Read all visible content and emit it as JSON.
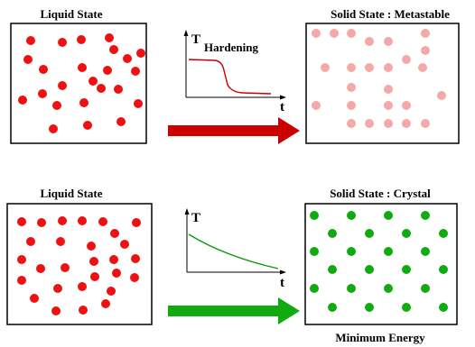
{
  "top_row": {
    "left_title": "Liquid State",
    "right_title": "Solid State : Metastable",
    "graph": {
      "y_axis_label": "T",
      "annotation": "Hardening",
      "x_axis_label": "t",
      "curve_color": "#cc0000"
    },
    "arrow_color": "#cc0000",
    "left_particle_color": "#ee1111",
    "right_particle_color": "#f4a9a9"
  },
  "bottom_row": {
    "left_title": "Liquid State",
    "right_title": "Solid State : Crystal",
    "caption": "Minimum Energy",
    "graph": {
      "y_axis_label": "T",
      "x_axis_label": "t",
      "curve_color": "#119911"
    },
    "arrow_color": "#11aa11",
    "left_particle_color": "#ee1111",
    "right_particle_color": "#11aa11"
  }
}
